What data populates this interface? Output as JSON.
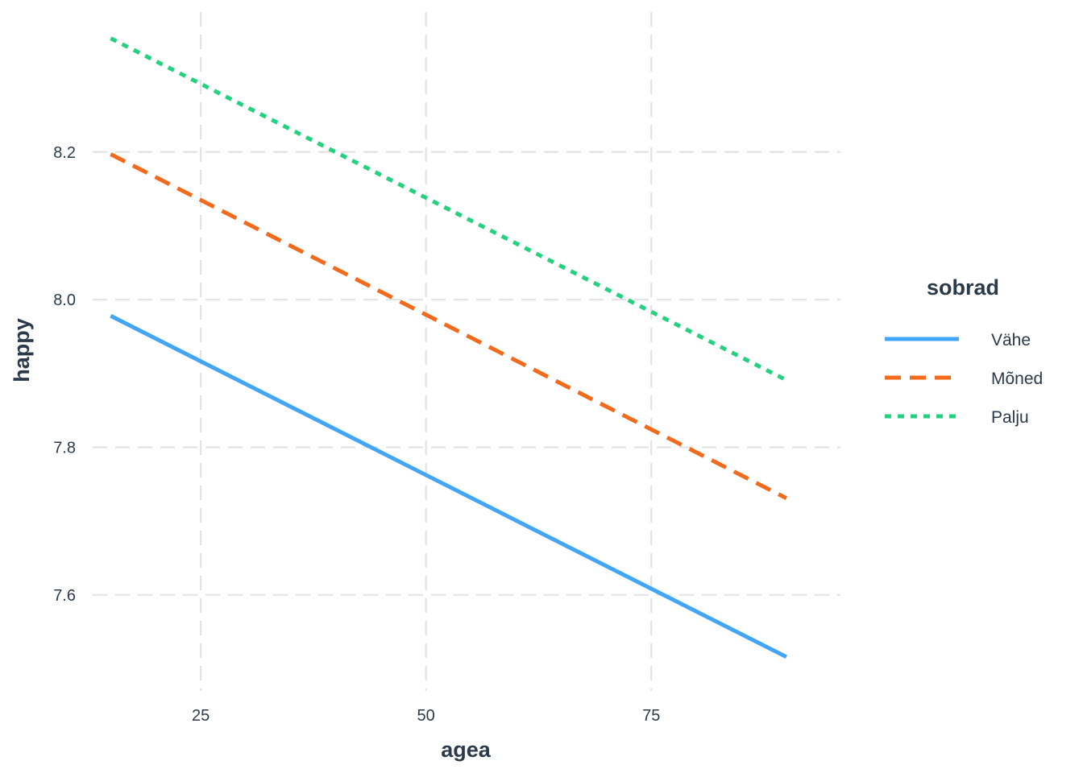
{
  "chart_data": {
    "type": "line",
    "xlabel": "agea",
    "ylabel": "happy",
    "xlim": [
      13,
      96
    ],
    "ylim": [
      7.47,
      8.395
    ],
    "x_ticks": [
      25,
      50,
      75
    ],
    "y_ticks": [
      7.6,
      7.8,
      8.0,
      8.2
    ],
    "x_tick_labels": [
      "25",
      "50",
      "75"
    ],
    "y_tick_labels": [
      "7.6",
      "7.8",
      "8.0",
      "8.2"
    ],
    "grid": true,
    "legend": {
      "title": "sobrad",
      "position": "right"
    },
    "series": [
      {
        "name": "Vähe",
        "color": "#42a5f5",
        "dash": "solid",
        "x": [
          15,
          90
        ],
        "y": [
          7.978,
          7.516
        ]
      },
      {
        "name": "Mõned",
        "color": "#f26b1d",
        "dash": "dashed",
        "x": [
          15,
          90
        ],
        "y": [
          8.197,
          7.731
        ]
      },
      {
        "name": "Palju",
        "color": "#23d17e",
        "dash": "dotted",
        "x": [
          15,
          90
        ],
        "y": [
          8.354,
          7.891
        ]
      }
    ]
  }
}
